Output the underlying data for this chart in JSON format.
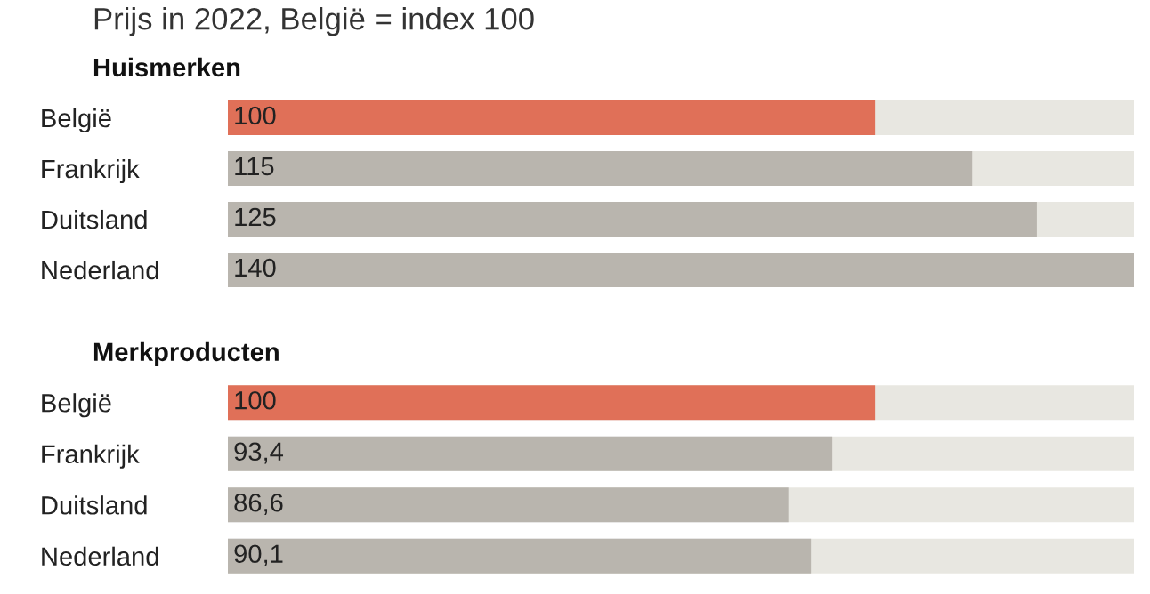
{
  "chart_data": [
    {
      "type": "bar",
      "orientation": "horizontal",
      "title": "Prijs in 2022, België = index 100",
      "subtitle": "Huismerken",
      "categories": [
        "België",
        "Frankrijk",
        "Duitsland",
        "Nederland"
      ],
      "values": [
        100,
        115,
        125,
        140
      ],
      "colors": [
        "#e07058",
        "#b9b5ae",
        "#b9b5ae",
        "#b9b5ae"
      ],
      "value_labels": [
        "100",
        "115",
        "125",
        "140"
      ],
      "xlim": [
        0,
        140
      ],
      "tick_labels": "y",
      "grid": false,
      "legend": false
    },
    {
      "type": "bar",
      "orientation": "horizontal",
      "subtitle": "Merkproducten",
      "categories": [
        "België",
        "Frankrijk",
        "Duitsland",
        "Nederland"
      ],
      "values": [
        100,
        93.4,
        86.6,
        90.1
      ],
      "colors": [
        "#e07058",
        "#b9b5ae",
        "#b9b5ae",
        "#b9b5ae"
      ],
      "value_labels": [
        "100",
        "93,4",
        "86,6",
        "90,1"
      ],
      "xlim": [
        0,
        140
      ],
      "tick_labels": "y",
      "grid": false,
      "legend": false
    }
  ]
}
